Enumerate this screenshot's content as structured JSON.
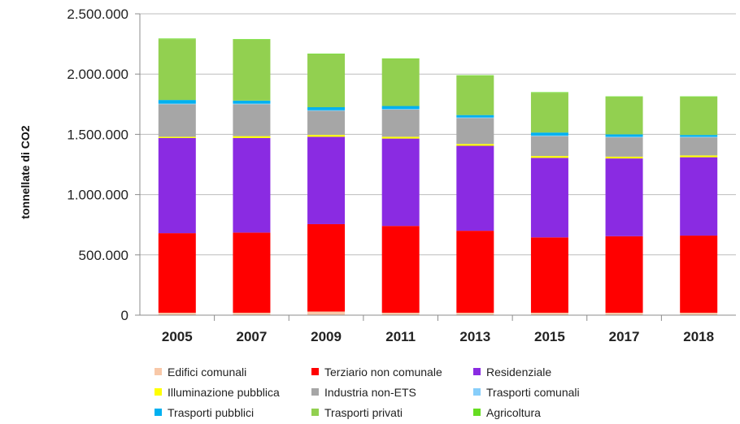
{
  "chart_data": {
    "type": "bar",
    "stacked": true,
    "ylabel": "tonnellate di CO2",
    "xlabel": "",
    "ylim": [
      0,
      2500000
    ],
    "yticks": [
      "0",
      "500.000",
      "1.000.000",
      "1.500.000",
      "2.000.000",
      "2.500.000"
    ],
    "grid": true,
    "legend_position": "bottom",
    "categories": [
      "2005",
      "2007",
      "2009",
      "2011",
      "2013",
      "2015",
      "2017",
      "2018"
    ],
    "series": [
      {
        "name": "Edifici comunali",
        "color": "#f8c8a8",
        "values": [
          20000,
          20000,
          30000,
          20000,
          20000,
          20000,
          20000,
          20000
        ]
      },
      {
        "name": "Terziario non comunale",
        "color": "#ff0000",
        "values": [
          660000,
          665000,
          725000,
          720000,
          680000,
          625000,
          635000,
          640000
        ]
      },
      {
        "name": "Residenziale",
        "color": "#8a2be2",
        "values": [
          790000,
          785000,
          725000,
          725000,
          705000,
          660000,
          645000,
          650000
        ]
      },
      {
        "name": "Illuminazione pubblica",
        "color": "#ffff00",
        "values": [
          10000,
          15000,
          15000,
          15000,
          15000,
          15000,
          15000,
          15000
        ]
      },
      {
        "name": "Industria non-ETS",
        "color": "#a6a6a6",
        "values": [
          270000,
          265000,
          200000,
          225000,
          215000,
          165000,
          160000,
          150000
        ]
      },
      {
        "name": "Trasporti comunali",
        "color": "#87cefa",
        "values": [
          5000,
          5000,
          5000,
          5000,
          5000,
          5000,
          5000,
          5000
        ]
      },
      {
        "name": "Trasporti pubblici",
        "color": "#00b0f0",
        "values": [
          30000,
          25000,
          25000,
          25000,
          20000,
          25000,
          20000,
          15000
        ]
      },
      {
        "name": "Trasporti privati",
        "color": "#92d050",
        "values": [
          505000,
          505000,
          440000,
          390000,
          325000,
          330000,
          310000,
          315000
        ]
      },
      {
        "name": "Agricoltura",
        "color": "#66dd22",
        "values": [
          5000,
          5000,
          5000,
          5000,
          5000,
          5000,
          5000,
          5000
        ]
      }
    ]
  }
}
